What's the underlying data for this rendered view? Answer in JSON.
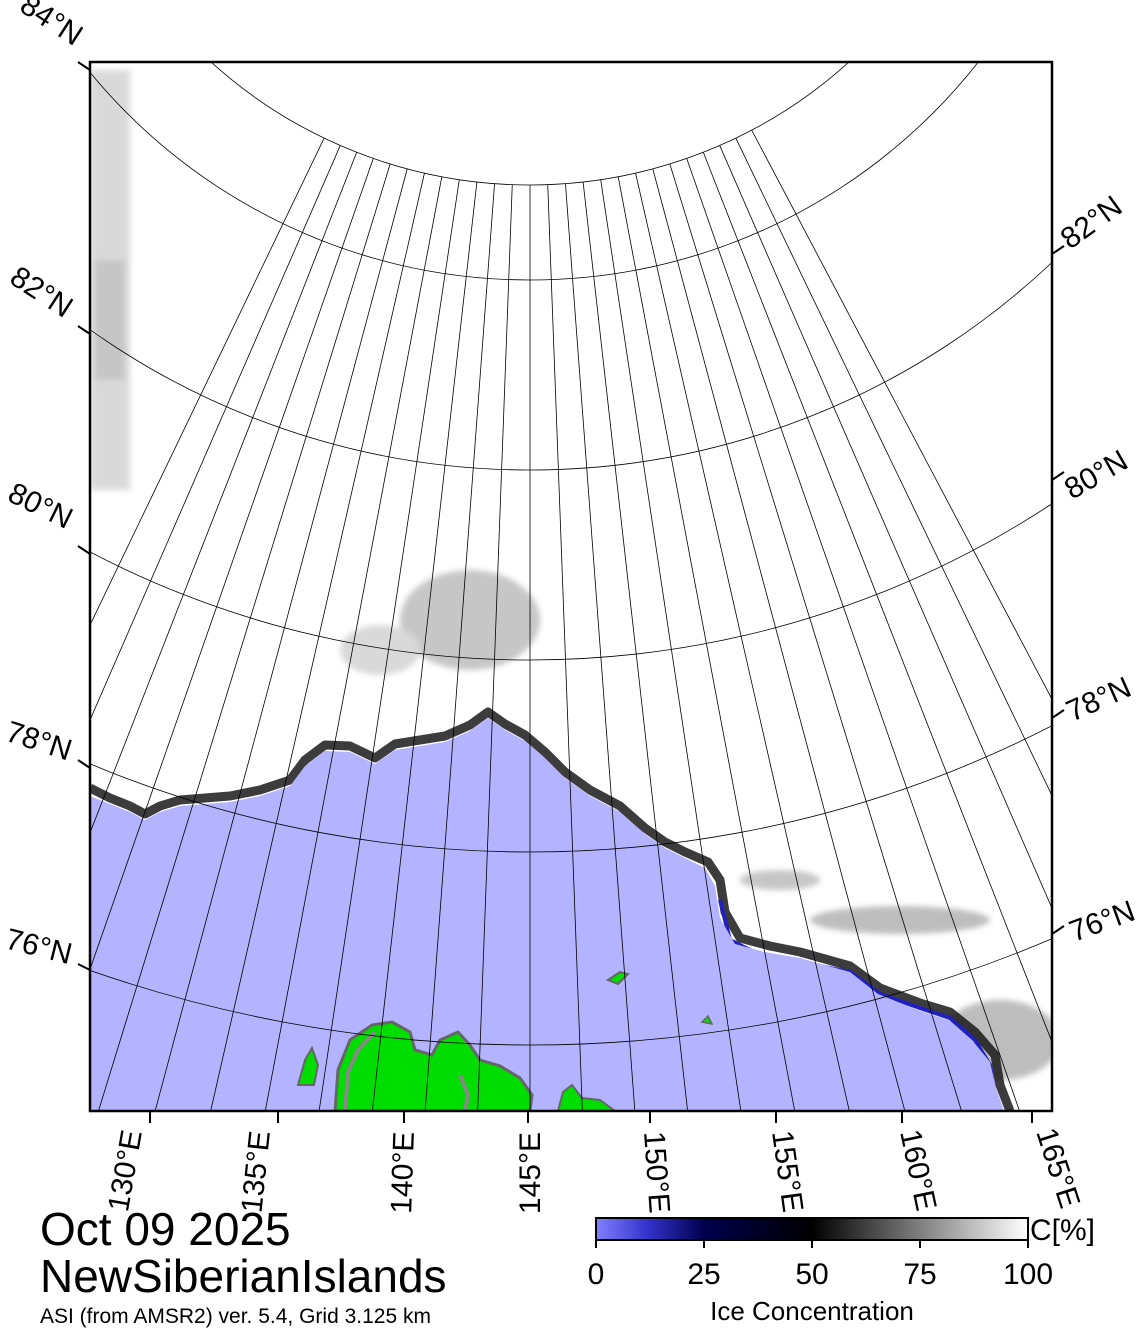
{
  "title": {
    "date": "Oct 09 2025",
    "region": "NewSiberianIslands",
    "product": "ASI (from AMSR2) ver. 5.4,  Grid 3.125 km"
  },
  "map": {
    "lat_labels_left": [
      "84°N",
      "82°N",
      "80°N",
      "78°N",
      "76°N"
    ],
    "lat_labels_right": [
      "82°N",
      "80°N",
      "78°N",
      "76°N"
    ],
    "lon_labels": [
      "130°E",
      "135°E",
      "140°E",
      "145°E",
      "150°E",
      "155°E",
      "160°E",
      "165°E"
    ]
  },
  "colorbar": {
    "title": "Ice Concentration",
    "unit": "C[%]",
    "ticks": [
      "0",
      "25",
      "50",
      "75",
      "100"
    ]
  },
  "colors": {
    "open_water": "#b3b3ff",
    "land": "#00dd00",
    "ice_high": "#ffffff",
    "ice_mid": "#000000",
    "ice_low": "#00004d",
    "ice_edge": "#6666ff"
  }
}
